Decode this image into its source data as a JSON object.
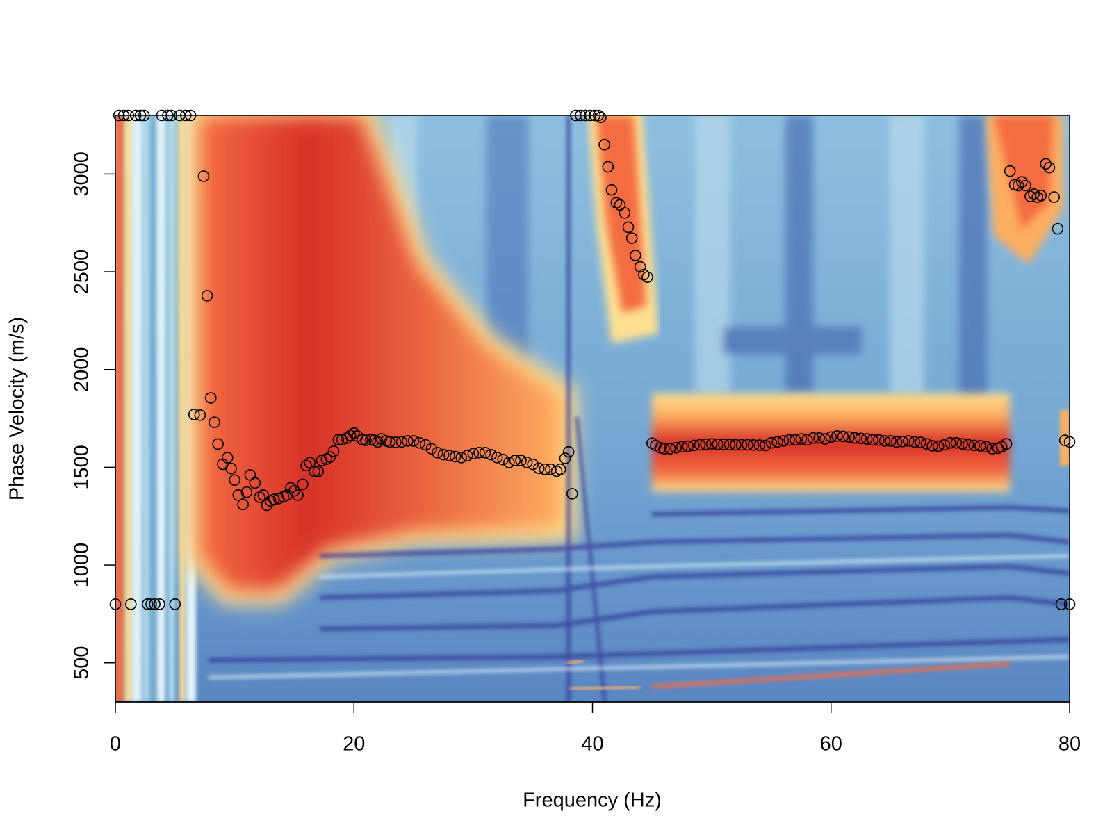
{
  "chart_data": {
    "type": "scatter",
    "xlabel": "Frequency (Hz)",
    "ylabel": "Phase Velocity (m/s)",
    "xlim": [
      0,
      80
    ],
    "xticks": [
      0,
      20,
      40,
      60,
      80
    ],
    "ylim": [
      300,
      3300
    ],
    "yticks": [
      500,
      1000,
      1500,
      2000,
      2500,
      3000
    ],
    "color": "#000000",
    "x": [
      0,
      0.3,
      0.7,
      1.1,
      1.3,
      1.7,
      2.1,
      2.4,
      2.7,
      3.0,
      3.3,
      3.7,
      3.9,
      4.4,
      4.7,
      5.0,
      5.4,
      5.9,
      6.3,
      6.6,
      7.1,
      7.4,
      7.7,
      8.0,
      8.3,
      8.6,
      9.0,
      9.4,
      9.7,
      10.0,
      10.3,
      10.7,
      11.0,
      11.3,
      11.7,
      12.1,
      12.4,
      12.7,
      13.0,
      13.3,
      13.7,
      14.1,
      14.4,
      14.7,
      15.0,
      15.3,
      15.7,
      16.0,
      16.3,
      16.7,
      17.0,
      17.3,
      17.7,
      18.0,
      18.3,
      18.7,
      19.0,
      19.4,
      19.7,
      20.0,
      20.3,
      20.7,
      21.0,
      21.4,
      21.7,
      22.0,
      22.3,
      22.7,
      23,
      23.5,
      24,
      24.5,
      25,
      25.5,
      26,
      26.5,
      27,
      27.5,
      28,
      28.5,
      29,
      29.5,
      30,
      30.5,
      31,
      31.5,
      32,
      32.5,
      33,
      33.5,
      34,
      34.5,
      35,
      35.5,
      36,
      36.5,
      37,
      37.3,
      37.7,
      38.0,
      38.3,
      38.6,
      39.0,
      39.4,
      39.8,
      40.2,
      40.5,
      40.7,
      41.0,
      41.3,
      41.6,
      42.0,
      42.3,
      42.7,
      43.0,
      43.3,
      43.6,
      44.0,
      44.3,
      44.6,
      45.0,
      45.3,
      45.7,
      46,
      46.5,
      47,
      47.5,
      48,
      48.5,
      49,
      49.5,
      50,
      50.5,
      51,
      51.5,
      52,
      52.5,
      53,
      53.5,
      54,
      54.5,
      55,
      55.5,
      56,
      56.5,
      57,
      57.5,
      58,
      58.5,
      59,
      59.5,
      60,
      60.5,
      61,
      61.5,
      62,
      62.5,
      63,
      63.5,
      64,
      64.5,
      65,
      65.5,
      66,
      66.5,
      67,
      67.5,
      68,
      68.5,
      69,
      69.5,
      70,
      70.5,
      71,
      71.5,
      72,
      72.5,
      73,
      73.5,
      74,
      74.3,
      74.7,
      75.0,
      75.4,
      75.7,
      76.0,
      76.3,
      76.7,
      77.0,
      77.3,
      77.6,
      78.0,
      78.3,
      78.7,
      79.0,
      79.3,
      79.6,
      80,
      80
    ],
    "y": [
      800,
      3300,
      3300,
      3300,
      800,
      3300,
      3300,
      3300,
      800,
      800,
      800,
      800,
      3300,
      3300,
      3300,
      800,
      3300,
      3300,
      3300,
      1770,
      1767,
      2989,
      2378,
      1855,
      1730,
      1619,
      1516,
      1549,
      1494,
      1435,
      1358,
      1310,
      1373,
      1461,
      1420,
      1347,
      1358,
      1306,
      1328,
      1336,
      1340,
      1350,
      1358,
      1395,
      1380,
      1358,
      1413,
      1509,
      1524,
      1479,
      1479,
      1535,
      1542,
      1553,
      1582,
      1641,
      1641,
      1649,
      1663,
      1675,
      1660,
      1641,
      1638,
      1641,
      1638,
      1630,
      1645,
      1635,
      1630,
      1628,
      1630,
      1635,
      1635,
      1625,
      1615,
      1595,
      1575,
      1565,
      1560,
      1555,
      1550,
      1560,
      1570,
      1575,
      1575,
      1565,
      1550,
      1540,
      1525,
      1535,
      1535,
      1525,
      1515,
      1495,
      1490,
      1490,
      1480,
      1490,
      1546,
      1579,
      1365,
      3300,
      3300,
      3300,
      3300,
      3300,
      3300,
      3290,
      3150,
      3037,
      2919,
      2853,
      2842,
      2801,
      2728,
      2672,
      2584,
      2525,
      2485,
      2473,
      1623,
      1612,
      1600,
      1595,
      1595,
      1600,
      1605,
      1608,
      1612,
      1615,
      1618,
      1620,
      1618,
      1617,
      1616,
      1615,
      1615,
      1615,
      1614,
      1613,
      1612,
      1625,
      1630,
      1635,
      1640,
      1640,
      1645,
      1640,
      1650,
      1650,
      1645,
      1655,
      1660,
      1658,
      1655,
      1650,
      1648,
      1645,
      1640,
      1640,
      1635,
      1635,
      1630,
      1632,
      1635,
      1630,
      1628,
      1620,
      1610,
      1608,
      1615,
      1625,
      1625,
      1620,
      1615,
      1612,
      1610,
      1605,
      1595,
      1598,
      1605,
      1620,
      3015,
      2945,
      2941,
      2960,
      2941,
      2886,
      2897,
      2882,
      2890,
      3052,
      3033,
      2882,
      2720,
      800,
      1638,
      1630,
      800
    ]
  }
}
